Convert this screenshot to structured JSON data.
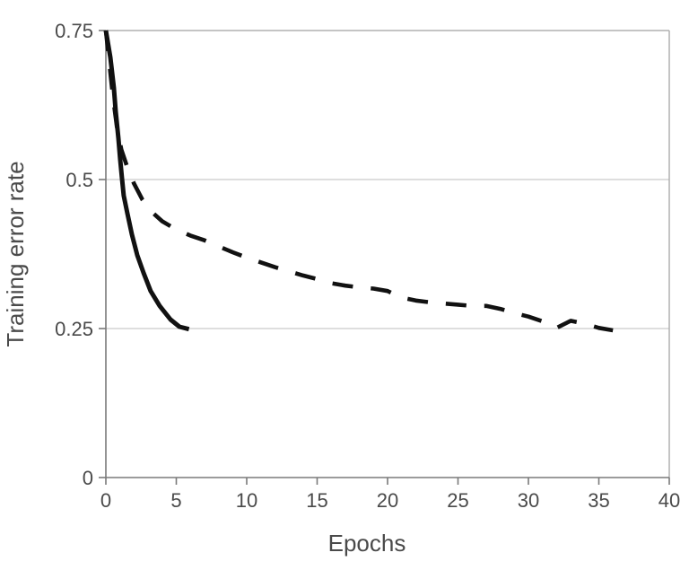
{
  "chart_data": {
    "type": "line",
    "title": "",
    "xlabel": "Epochs",
    "ylabel": "Training error rate",
    "xlim": [
      0,
      40
    ],
    "ylim": [
      0,
      0.75
    ],
    "x_ticks": [
      0,
      5,
      10,
      15,
      20,
      25,
      30,
      35,
      40
    ],
    "x_tick_labels": [
      "0",
      "5",
      "10",
      "15",
      "20",
      "25",
      "30",
      "35",
      "40"
    ],
    "y_ticks": [
      0,
      0.25,
      0.5,
      0.75
    ],
    "y_tick_labels": [
      "0",
      "0.25",
      "0.5",
      "0.75"
    ],
    "grid": true,
    "gridlines_y": [
      0.25,
      0.5
    ],
    "legend": "none",
    "colors": {
      "line": "#111111",
      "axis": "#7a7a7a",
      "border": "#b0b0b0",
      "grid": "#c9c9c9",
      "tick_text": "#4a4a4a"
    },
    "series": [
      {
        "name": "solid-line",
        "style": "solid",
        "color": "#111111",
        "points": [
          [
            0,
            0.75
          ],
          [
            0.32,
            0.705
          ],
          [
            0.57,
            0.654
          ],
          [
            0.7,
            0.614
          ],
          [
            0.89,
            0.569
          ],
          [
            1.02,
            0.533
          ],
          [
            1.15,
            0.5
          ],
          [
            1.27,
            0.473
          ],
          [
            1.53,
            0.443
          ],
          [
            1.85,
            0.408
          ],
          [
            2.23,
            0.373
          ],
          [
            2.68,
            0.343
          ],
          [
            3.18,
            0.313
          ],
          [
            3.82,
            0.288
          ],
          [
            4.59,
            0.265
          ],
          [
            5.22,
            0.253
          ],
          [
            5.9,
            0.249
          ]
        ]
      },
      {
        "name": "dashed-line",
        "style": "dashed",
        "color": "#111111",
        "points": [
          [
            0,
            0.75
          ],
          [
            0.5,
            0.64
          ],
          [
            0.8,
            0.585
          ],
          [
            1.1,
            0.55
          ],
          [
            1.5,
            0.522
          ],
          [
            2,
            0.493
          ],
          [
            2.6,
            0.466
          ],
          [
            3.2,
            0.447
          ],
          [
            4,
            0.43
          ],
          [
            5,
            0.416
          ],
          [
            6,
            0.406
          ],
          [
            7,
            0.398
          ],
          [
            8,
            0.388
          ],
          [
            9,
            0.378
          ],
          [
            10,
            0.369
          ],
          [
            11,
            0.361
          ],
          [
            12,
            0.353
          ],
          [
            13,
            0.346
          ],
          [
            14,
            0.339
          ],
          [
            15,
            0.333
          ],
          [
            16,
            0.326
          ],
          [
            17,
            0.322
          ],
          [
            18,
            0.319
          ],
          [
            19,
            0.317
          ],
          [
            20,
            0.313
          ],
          [
            21,
            0.302
          ],
          [
            22,
            0.297
          ],
          [
            23,
            0.294
          ],
          [
            24,
            0.292
          ],
          [
            25,
            0.29
          ],
          [
            26,
            0.288
          ],
          [
            27,
            0.288
          ],
          [
            28,
            0.283
          ],
          [
            29,
            0.276
          ],
          [
            30,
            0.27
          ],
          [
            31,
            0.262
          ],
          [
            32,
            0.251
          ],
          [
            33,
            0.263
          ],
          [
            34,
            0.258
          ],
          [
            35,
            0.251
          ],
          [
            36,
            0.247
          ]
        ]
      }
    ]
  }
}
